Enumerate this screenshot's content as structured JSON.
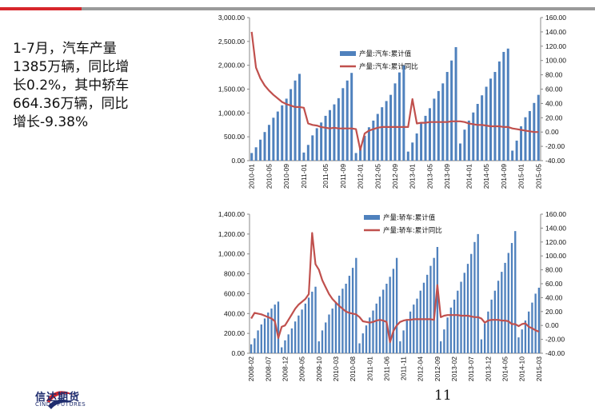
{
  "summary": {
    "lines": [
      "1-7月，汽车产量",
      "1385万辆，同比增",
      "长0.2%，其中轿车",
      "664.36万辆，同比",
      "增长-9.38%"
    ]
  },
  "colors": {
    "bar": "#4f81bd",
    "line": "#c0504d",
    "accent_red": "#d7262c",
    "divider_gray": "#9a9a9a"
  },
  "page": {
    "number": "11"
  },
  "logo": {
    "name_cn": "信达期货",
    "name_en": "CINDA FUTURES"
  },
  "chart_data": [
    {
      "type": "bar",
      "title": "",
      "xlabel": "",
      "ylabel": "",
      "ylim": [
        0,
        3000
      ],
      "y2lim": [
        -40,
        160
      ],
      "y_ticks": [
        "3,000.00",
        "2,500.00",
        "2,000.00",
        "1,500.00",
        "1,000.00",
        "500.00",
        "0.00"
      ],
      "y2_ticks": [
        "160.00",
        "140.00",
        "120.00",
        "100.00",
        "80.00",
        "60.00",
        "40.00",
        "20.00",
        "0.00",
        "-20.00",
        "-40.00"
      ],
      "x_tick_labels": [
        "2010-01",
        "2010-05",
        "2010-09",
        "2011-01",
        "2011-05",
        "2011-09",
        "2012-01",
        "2012-05",
        "2012-09",
        "2013-01",
        "2013-05",
        "2013-09",
        "2014-01",
        "2014-05",
        "2014-09",
        "2015-01",
        "2015-05"
      ],
      "grid": false,
      "legend_position": "top-center",
      "series": [
        {
          "name": "产量:汽车:累计值",
          "kind": "bar",
          "axis": "left",
          "values": [
            160,
            280,
            440,
            600,
            750,
            900,
            1030,
            1160,
            1300,
            1500,
            1680,
            1820,
            170,
            330,
            530,
            680,
            800,
            940,
            1060,
            1180,
            1310,
            1520,
            1680,
            1840,
            160,
            300,
            520,
            700,
            840,
            980,
            1120,
            1250,
            1380,
            1620,
            1850,
            2000,
            190,
            380,
            570,
            780,
            940,
            1100,
            1300,
            1460,
            1620,
            1860,
            2100,
            2380,
            360,
            650,
            840,
            1010,
            1190,
            1370,
            1550,
            1720,
            1860,
            2080,
            2280,
            2350,
            210,
            420,
            720,
            910,
            1040,
            1210,
            1380
          ]
        },
        {
          "name": "产量:汽车:累计同比",
          "kind": "line",
          "axis": "right",
          "values": [
            140,
            90,
            75,
            65,
            58,
            52,
            47,
            42,
            39,
            37,
            35,
            35,
            34,
            12,
            10,
            9,
            7,
            6,
            5,
            6,
            5,
            5,
            5,
            5,
            4,
            -25,
            -2,
            2,
            4,
            6,
            7,
            7,
            7,
            7,
            7,
            7,
            7,
            46,
            12,
            13,
            13,
            14,
            14,
            14,
            14,
            14,
            15,
            15,
            15,
            14,
            12,
            11,
            10,
            10,
            9,
            8,
            8,
            8,
            7,
            7,
            5,
            4,
            3,
            2,
            1,
            0,
            0
          ]
        }
      ]
    },
    {
      "type": "bar",
      "title": "",
      "xlabel": "",
      "ylabel": "",
      "ylim": [
        0,
        1400
      ],
      "y2lim": [
        -40,
        160
      ],
      "y_ticks": [
        "1,400.00",
        "1,200.00",
        "1,000.00",
        "800.00",
        "600.00",
        "400.00",
        "200.00",
        "0.00"
      ],
      "y2_ticks": [
        "160.00",
        "140.00",
        "120.00",
        "100.00",
        "80.00",
        "60.00",
        "40.00",
        "20.00",
        "0.00",
        "-20.00",
        "-40.00"
      ],
      "x_tick_labels": [
        "2008-02",
        "2008-07",
        "2008-12",
        "2009-05",
        "2009-10",
        "2010-03",
        "2010-08",
        "2011-01",
        "2011-06",
        "2011-11",
        "2012-04",
        "2012-09",
        "2013-02",
        "2013-07",
        "2013-12",
        "2014-05",
        "2014-10",
        "2015-03"
      ],
      "grid": false,
      "legend_position": "top-center",
      "series": [
        {
          "name": "产量:轿车:累计值",
          "kind": "bar",
          "axis": "left",
          "values": [
            90,
            150,
            230,
            290,
            350,
            410,
            450,
            490,
            520,
            60,
            130,
            190,
            250,
            320,
            380,
            440,
            500,
            560,
            620,
            670,
            120,
            230,
            310,
            390,
            450,
            510,
            580,
            650,
            700,
            780,
            860,
            960,
            100,
            200,
            280,
            360,
            430,
            500,
            570,
            640,
            700,
            770,
            850,
            960,
            120,
            230,
            330,
            420,
            490,
            550,
            630,
            710,
            790,
            880,
            960,
            1070,
            120,
            240,
            360,
            460,
            540,
            630,
            720,
            810,
            900,
            1000,
            1120,
            1200,
            140,
            300,
            420,
            540,
            630,
            730,
            820,
            910,
            1010,
            1110,
            1230,
            160,
            240,
            330,
            420,
            510,
            600,
            660
          ]
        },
        {
          "name": "产量:轿车:累计同比",
          "kind": "line",
          "axis": "right",
          "values": [
            10,
            18,
            17,
            16,
            14,
            12,
            10,
            6,
            -18,
            -2,
            0,
            8,
            16,
            24,
            30,
            34,
            38,
            45,
            133,
            88,
            80,
            65,
            55,
            45,
            38,
            33,
            28,
            24,
            20,
            18,
            17,
            16,
            12,
            6,
            5,
            4,
            5,
            7,
            8,
            7,
            5,
            -24,
            -8,
            0,
            5,
            7,
            8,
            8,
            9,
            9,
            9,
            9,
            9,
            9,
            8,
            58,
            12,
            14,
            15,
            15,
            15,
            15,
            14,
            14,
            14,
            13,
            12,
            12,
            10,
            4,
            7,
            8,
            8,
            8,
            7,
            7,
            6,
            2,
            2,
            -1,
            2,
            3,
            -2,
            -4,
            -7,
            -9
          ]
        }
      ]
    }
  ]
}
